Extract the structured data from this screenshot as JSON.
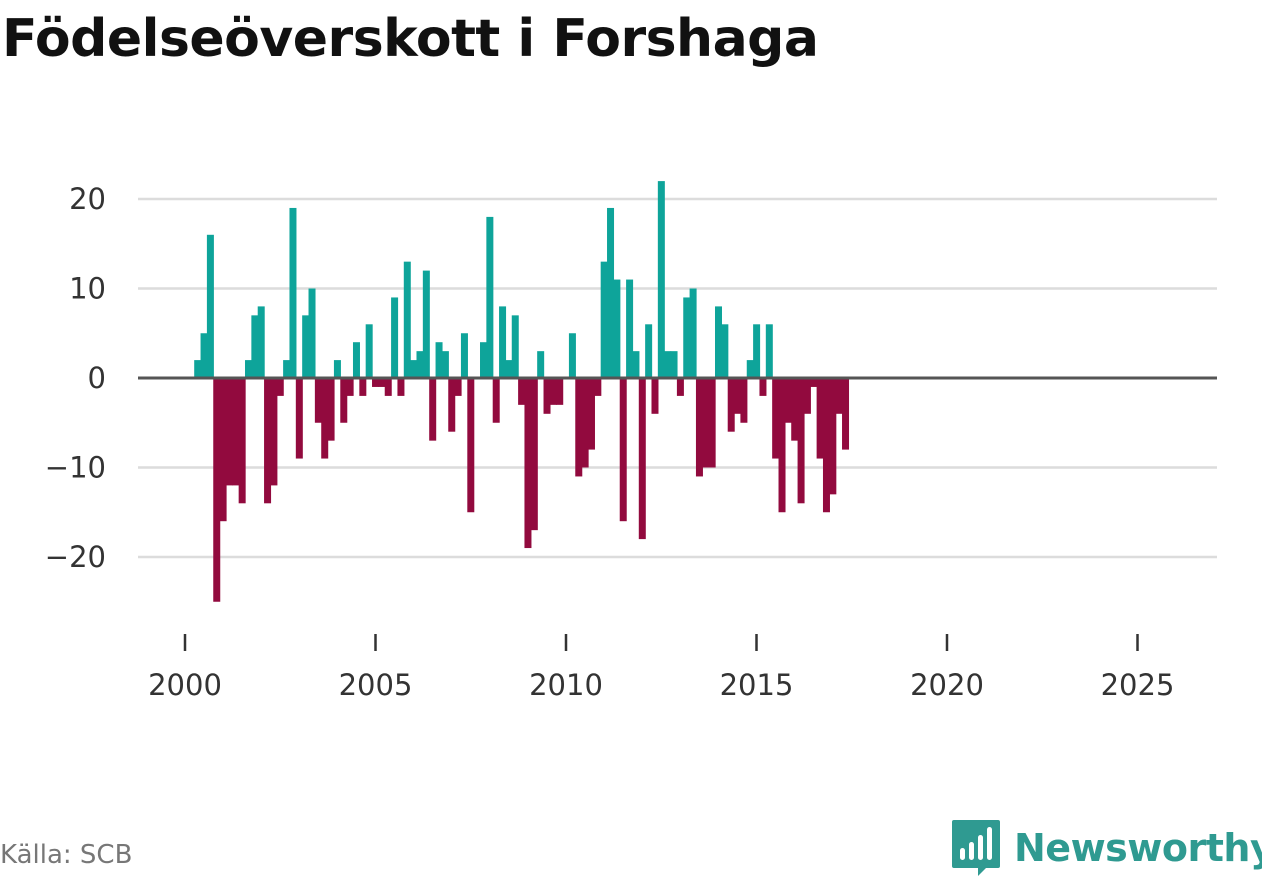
{
  "title": "Födelseöverskott i Forshaga",
  "source": "Källa: SCB",
  "brand": {
    "name": "Newsworthy",
    "icon": "newsworthy-logo-icon"
  },
  "colors": {
    "positive": "#0ea49a",
    "negative": "#920a3e",
    "grid": "#dcdcdc",
    "zero_line": "#555555",
    "brand": "#2f9a91"
  },
  "chart_data": {
    "type": "bar",
    "title": "Födelseöverskott i Forshaga",
    "xlabel": "",
    "ylabel": "",
    "frequency": "monthly",
    "x_start": 2000.3333,
    "x_step": 0.1667,
    "xlim": [
      2000,
      2026.8
    ],
    "ylim": [
      -25,
      22
    ],
    "yticks": [
      20,
      10,
      0,
      -10,
      -20
    ],
    "ytick_labels": [
      "20",
      "10",
      "0",
      "−10",
      "−20"
    ],
    "xticks": [
      2000,
      2005,
      2010,
      2015,
      2020,
      2025
    ],
    "xtick_labels": [
      "2000",
      "2005",
      "2010",
      "2015",
      "2020",
      "2025"
    ],
    "values": [
      2,
      5,
      16,
      -25,
      -16,
      -12,
      -12,
      -14,
      2,
      7,
      8,
      -14,
      -12,
      -2,
      2,
      19,
      -9,
      7,
      10,
      -5,
      -9,
      -7,
      2,
      -5,
      -2,
      4,
      -2,
      6,
      -1,
      -1,
      -2,
      9,
      -2,
      13,
      2,
      3,
      12,
      -7,
      4,
      3,
      -6,
      -2,
      5,
      -15,
      0,
      4,
      18,
      -5,
      8,
      2,
      7,
      -3,
      -19,
      -17,
      3,
      -4,
      -3,
      -3,
      0,
      5,
      -11,
      -10,
      -8,
      -2,
      13,
      19,
      11,
      -16,
      11,
      3,
      -18,
      6,
      -4,
      22,
      3,
      3,
      -2,
      9,
      10,
      -11,
      -10,
      -10,
      8,
      6,
      -6,
      -4,
      -5,
      2,
      6,
      -2,
      6,
      -9,
      -15,
      -5,
      -7,
      -14,
      -4,
      -1,
      -9,
      -15,
      -13,
      -4,
      -8
    ],
    "grid": true,
    "legend": "none"
  }
}
